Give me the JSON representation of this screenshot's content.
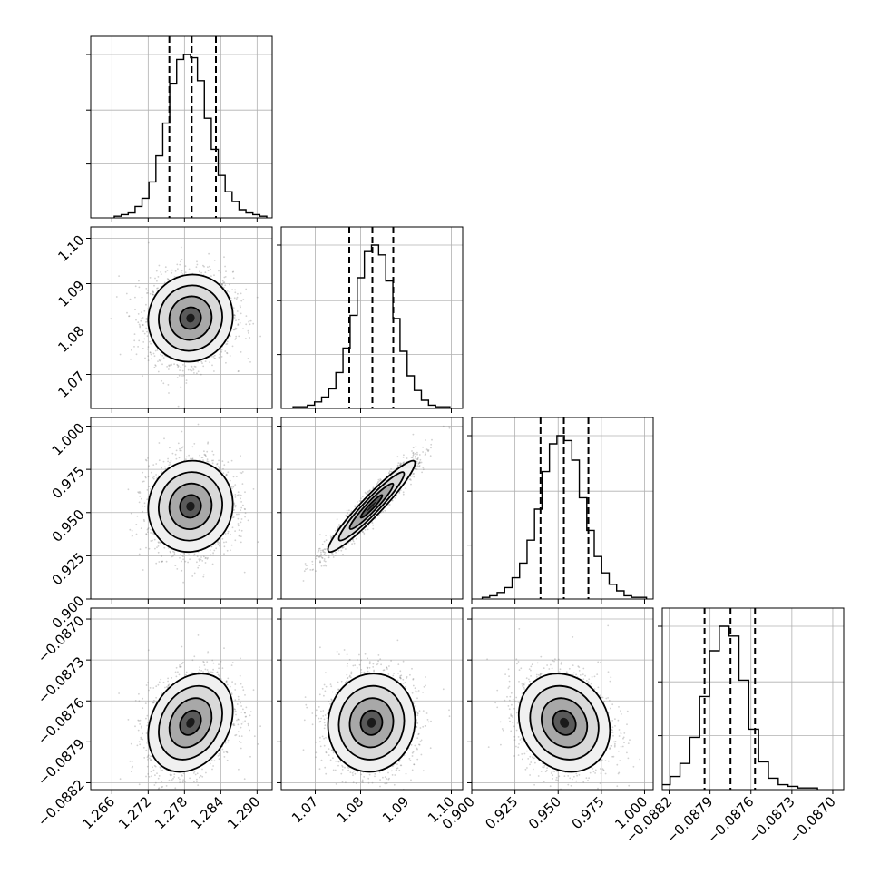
{
  "chart_data": {
    "type": "scatter",
    "title": "",
    "parameters": [
      {
        "name": "",
        "range": [
          1.2625,
          1.2925
        ],
        "ticks": [
          1.266,
          1.272,
          1.278,
          1.284,
          1.29
        ],
        "tick_labels": [
          "1.266",
          "1.272",
          "1.278",
          "1.284",
          "1.290"
        ],
        "quantiles": [
          1.2755,
          1.2792,
          1.2832
        ],
        "mean": 1.279,
        "std": 0.0035
      },
      {
        "name": "",
        "range": [
          1.0625,
          1.1025
        ],
        "ticks": [
          1.07,
          1.08,
          1.09,
          1.1
        ],
        "tick_labels": [
          "1.07",
          "1.08",
          "1.09",
          "1.10"
        ],
        "quantiles": [
          1.0775,
          1.0826,
          1.0872
        ],
        "mean": 1.0824,
        "std": 0.0048
      },
      {
        "name": "",
        "range": [
          0.9,
          1.005
        ],
        "ticks": [
          0.9,
          0.925,
          0.95,
          0.975,
          1.0
        ],
        "tick_labels": [
          "0.900",
          "0.925",
          "0.950",
          "0.975",
          "1.000"
        ],
        "quantiles": [
          0.9398,
          0.9533,
          0.9675
        ],
        "mean": 0.9536,
        "std": 0.0132
      },
      {
        "name": "",
        "range": [
          -0.08825,
          -0.08692
        ],
        "ticks": [
          -0.0882,
          -0.0879,
          -0.0876,
          -0.0873,
          -0.087
        ],
        "tick_labels": [
          "−0.0882",
          "−0.0879",
          "−0.0876",
          "−0.0873",
          "−0.0870"
        ],
        "quantiles": [
          -0.08794,
          -0.08775,
          -0.08757
        ],
        "mean": -0.08776,
        "std": 0.00018
      }
    ],
    "correlations": [
      [
        1,
        0.05,
        0.05,
        0.25
      ],
      [
        0.05,
        1,
        0.95,
        0.05
      ],
      [
        0.05,
        0.95,
        1,
        -0.15
      ],
      [
        0.25,
        0.05,
        -0.15,
        1
      ]
    ],
    "histograms": {
      "0": [
        1,
        2,
        3,
        7,
        12,
        22,
        38,
        58,
        82,
        97,
        100,
        98,
        84,
        61,
        42,
        26,
        16,
        10,
        5,
        3,
        2,
        1
      ],
      "1": [
        1,
        1,
        2,
        4,
        7,
        12,
        22,
        37,
        57,
        80,
        96,
        100,
        94,
        78,
        55,
        35,
        20,
        11,
        5,
        2,
        1,
        1
      ],
      "2": [
        1,
        2,
        4,
        7,
        13,
        22,
        36,
        55,
        78,
        95,
        100,
        97,
        85,
        62,
        42,
        26,
        16,
        9,
        5,
        2,
        1,
        1
      ],
      "3": [
        1,
        2,
        3,
        8,
        16,
        32,
        57,
        85,
        100,
        94,
        67,
        37,
        17,
        7,
        3,
        2,
        1,
        1
      ]
    },
    "contour_levels_sigma": [
      0.5,
      1,
      1.5,
      2
    ],
    "grid": true,
    "legend": "none"
  }
}
